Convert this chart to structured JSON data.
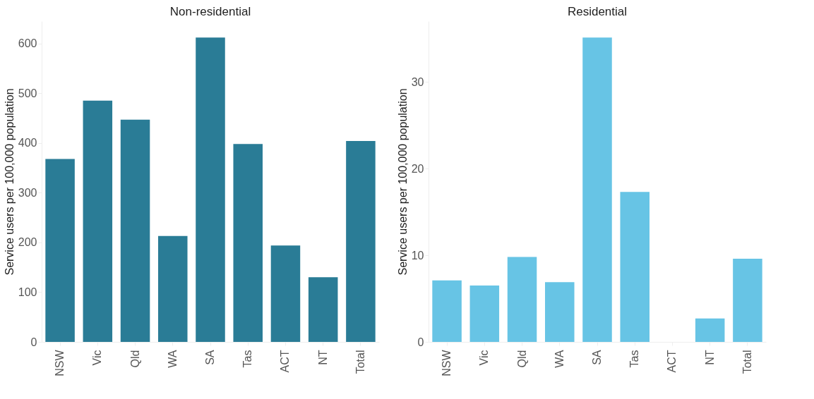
{
  "chart_data": [
    {
      "type": "bar",
      "title": "Non-residential",
      "ylabel": "Service users per 100,000 population",
      "categories": [
        "NSW",
        "Vic",
        "Qld",
        "WA",
        "SA",
        "Tas",
        "ACT",
        "NT",
        "Total"
      ],
      "values": [
        368,
        485,
        447,
        213,
        612,
        398,
        194,
        130,
        404
      ],
      "color": "#2a7c96",
      "ylim": [
        0,
        645
      ],
      "yticks": [
        0,
        100,
        200,
        300,
        400,
        500,
        600
      ],
      "grid": false
    },
    {
      "type": "bar",
      "title": "Residential",
      "ylabel": "Service users per 100,000 population",
      "categories": [
        "NSW",
        "Vic",
        "Qld",
        "WA",
        "SA",
        "Tas",
        "ACT",
        "NT",
        "Total"
      ],
      "values": [
        7.1,
        6.5,
        9.8,
        6.9,
        35.1,
        17.3,
        0,
        2.7,
        9.6
      ],
      "color": "#67c4e5",
      "ylim": [
        0,
        37
      ],
      "yticks": [
        0,
        10,
        20,
        30
      ],
      "grid": false
    }
  ]
}
